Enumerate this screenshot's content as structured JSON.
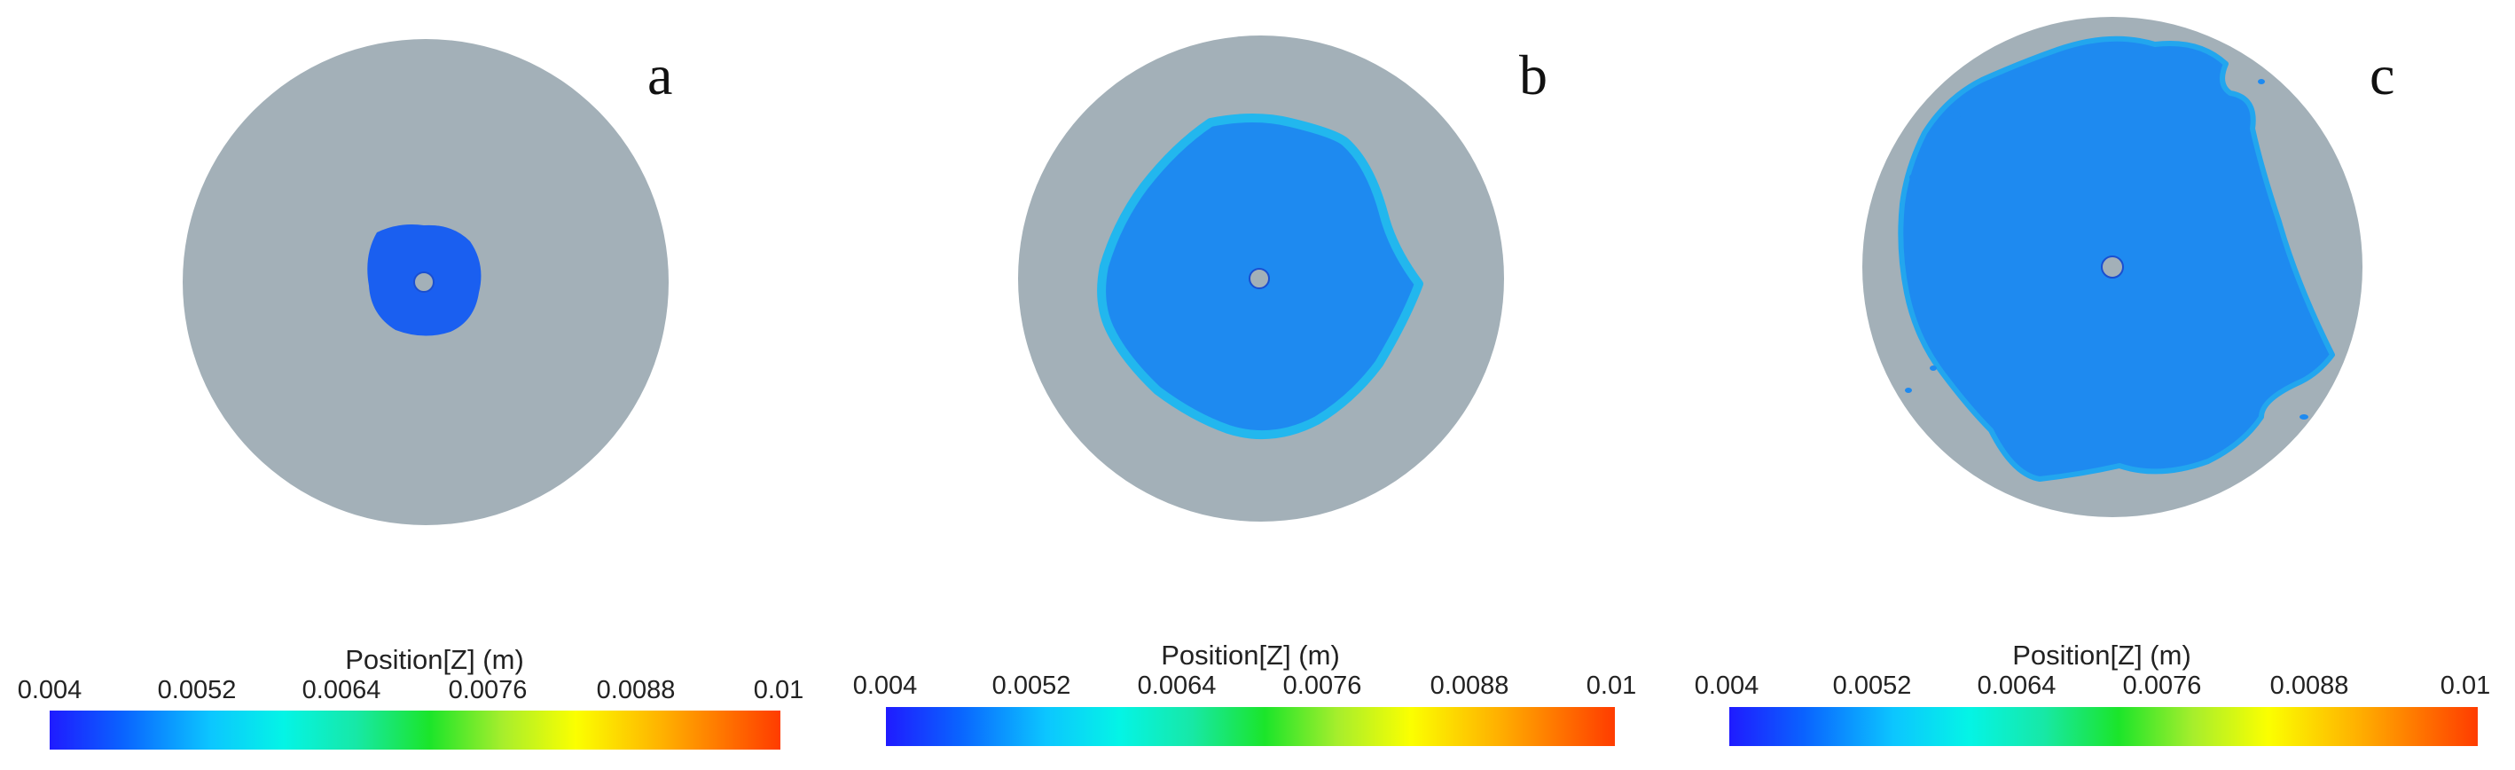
{
  "panels": [
    {
      "label": "a",
      "colorbar": {
        "title": "Position[Z] (m)",
        "ticks": [
          "0.004",
          "0.0052",
          "0.0064",
          "0.0076",
          "0.0088",
          "0.01"
        ]
      }
    },
    {
      "label": "b",
      "colorbar": {
        "title": "Position[Z] (m)",
        "ticks": [
          "0.004",
          "0.0052",
          "0.0064",
          "0.0076",
          "0.0088",
          "0.01"
        ]
      }
    },
    {
      "label": "c",
      "colorbar": {
        "title": "Position[Z] (m)",
        "ticks": [
          "0.004",
          "0.0052",
          "0.0064",
          "0.0076",
          "0.0088",
          "0.01"
        ]
      }
    }
  ],
  "colors": {
    "disc": "#a3b0b8",
    "droplet": "#1e8af0",
    "center": "#1a4fd0"
  }
}
